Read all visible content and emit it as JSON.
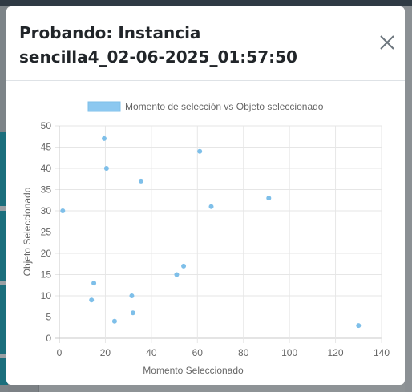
{
  "modal": {
    "title_line1": "Probando: Instancia",
    "title_line2": "sencilla4_02-06-2025_01:57:50",
    "close_icon": "close-icon"
  },
  "chart_data": {
    "type": "scatter",
    "legend": {
      "label": "Momento de selección vs Objeto seleccionado",
      "placement": "top-center",
      "color": "#8cc8f0"
    },
    "point_color": "#7ebfe9",
    "xlabel": "Momento Seleccionado",
    "ylabel": "Objeto Seleccionado",
    "xlim": [
      0,
      140
    ],
    "ylim": [
      0,
      50
    ],
    "xticks": [
      0,
      20,
      40,
      60,
      80,
      100,
      120,
      140
    ],
    "yticks": [
      0,
      5,
      10,
      15,
      20,
      25,
      30,
      35,
      40,
      45,
      50
    ],
    "grid": true,
    "points": [
      {
        "x": 1.5,
        "y": 30
      },
      {
        "x": 14,
        "y": 9
      },
      {
        "x": 15,
        "y": 13
      },
      {
        "x": 19.5,
        "y": 47
      },
      {
        "x": 20.5,
        "y": 40
      },
      {
        "x": 24,
        "y": 4
      },
      {
        "x": 31.5,
        "y": 10
      },
      {
        "x": 32,
        "y": 6
      },
      {
        "x": 35.5,
        "y": 37
      },
      {
        "x": 51,
        "y": 15
      },
      {
        "x": 54,
        "y": 17
      },
      {
        "x": 61,
        "y": 44
      },
      {
        "x": 66,
        "y": 31
      },
      {
        "x": 91,
        "y": 33
      },
      {
        "x": 130,
        "y": 3
      }
    ]
  }
}
